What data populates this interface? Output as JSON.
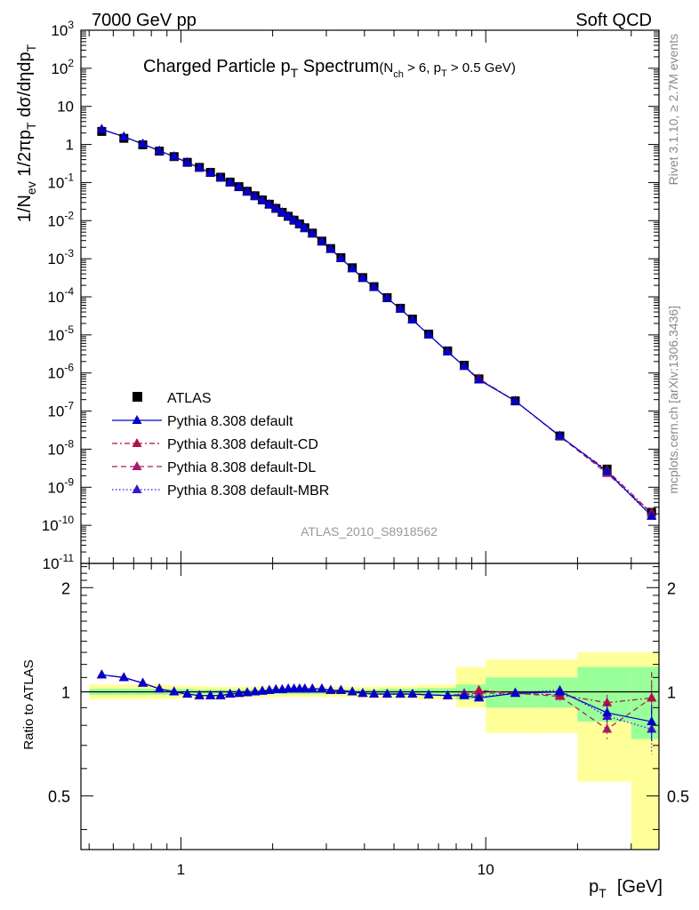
{
  "header": {
    "left": "7000 GeV pp",
    "right": "Soft QCD"
  },
  "side_labels": {
    "rivet": "Rivet 3.1.10, ≥ 2.7M events",
    "mcplots": "mcplots.cern.ch [arXiv:1306.3436]"
  },
  "analysis_id": "ATLAS_2010_S8918562",
  "chart_data": [
    {
      "type": "scatter",
      "panel": "main",
      "title": "Charged Particle pT Spectrum",
      "title_main": "Charged Particle p",
      "title_sub": "T",
      "title_main2": " Spectrum",
      "title_cond": "(N",
      "title_cond_sub1": "ch",
      "title_cond_mid": " > 6, p",
      "title_cond_sub2": "T",
      "title_cond_end": " > 0.5 GeV)",
      "xlabel": "pT [GeV]",
      "xlabel_main": "p",
      "xlabel_sub": "T",
      "xlabel_unit": "[GeV]",
      "ylabel": "1/Nev 1/2πpT dσ/dηdpT",
      "ylabel_parts": [
        "1/N",
        "ev",
        " 1/2πp",
        "T",
        " dσ/dηdp",
        "T"
      ],
      "x_scale": "log",
      "y_scale": "log",
      "xlim": [
        0.47,
        37
      ],
      "ylim": [
        1e-11,
        1000.0
      ],
      "x_tick_labels": [
        "1",
        "10"
      ],
      "y_tick_labels": [
        {
          "m": "10",
          "e": "3"
        },
        {
          "m": "10",
          "e": "2"
        },
        {
          "m": "10",
          "e": ""
        },
        {
          "m": "1",
          "e": ""
        },
        {
          "m": "10",
          "e": "-1"
        },
        {
          "m": "10",
          "e": "-2"
        },
        {
          "m": "10",
          "e": "-3"
        },
        {
          "m": "10",
          "e": "-4"
        },
        {
          "m": "10",
          "e": "-5"
        },
        {
          "m": "10",
          "e": "-6"
        },
        {
          "m": "10",
          "e": "-7"
        },
        {
          "m": "10",
          "e": "-8"
        },
        {
          "m": "10",
          "e": "-9"
        },
        {
          "m": "10",
          "e": "-10"
        },
        {
          "m": "10",
          "e": "-11"
        }
      ],
      "legend_position": "lower-left",
      "x": [
        0.55,
        0.65,
        0.75,
        0.85,
        0.95,
        1.05,
        1.15,
        1.25,
        1.35,
        1.45,
        1.55,
        1.65,
        1.75,
        1.85,
        1.95,
        2.05,
        2.15,
        2.25,
        2.35,
        2.45,
        2.55,
        2.7,
        2.9,
        3.1,
        3.35,
        3.65,
        3.95,
        4.3,
        4.75,
        5.25,
        5.75,
        6.5,
        7.5,
        8.5,
        9.5,
        12.5,
        17.5,
        25,
        35
      ],
      "series": [
        {
          "name": "ATLAS",
          "color": "#000000",
          "marker": "square",
          "values": [
            2.2,
            1.45,
            0.98,
            0.67,
            0.48,
            0.34,
            0.25,
            0.185,
            0.138,
            0.103,
            0.078,
            0.059,
            0.045,
            0.035,
            0.027,
            0.021,
            0.0165,
            0.013,
            0.0103,
            0.0082,
            0.0065,
            0.0047,
            0.0029,
            0.00185,
            0.00107,
            0.00058,
            0.00032,
            0.000185,
            9.5e-05,
            5e-05,
            2.6e-05,
            1.05e-05,
            3.8e-06,
            1.6e-06,
            7e-07,
            1.85e-07,
            2.22e-08,
            3e-09,
            2.2e-10
          ]
        },
        {
          "name": "Pythia 8.308 default",
          "color": "#0000cc",
          "marker": "triangle",
          "line": "solid",
          "values": [
            2.5,
            1.6,
            1.03,
            0.68,
            0.48,
            0.335,
            0.245,
            0.18,
            0.134,
            0.1,
            0.076,
            0.058,
            0.044,
            0.034,
            0.0266,
            0.0208,
            0.0164,
            0.0129,
            0.0102,
            0.0081,
            0.0064,
            0.0046,
            0.0028,
            0.00178,
            0.00102,
            0.00055,
            0.00031,
            0.000178,
            9.2e-05,
            4.8e-05,
            2.5e-05,
            1.01e-05,
            3.6e-06,
            1.5e-06,
            6.6e-07,
            1.84e-07,
            2.22e-08,
            2.6e-09,
            1.78e-10
          ]
        },
        {
          "name": "Pythia 8.308 default-CD",
          "color": "#b00f4a",
          "marker": "triangle",
          "line": "dashdot",
          "values": [
            2.5,
            1.6,
            1.03,
            0.68,
            0.48,
            0.335,
            0.245,
            0.18,
            0.134,
            0.1,
            0.076,
            0.058,
            0.044,
            0.034,
            0.0266,
            0.0208,
            0.0164,
            0.0129,
            0.0102,
            0.0081,
            0.0064,
            0.0046,
            0.0028,
            0.00178,
            0.00102,
            0.00055,
            0.00031,
            0.000178,
            9.2e-05,
            4.8e-05,
            2.5e-05,
            1.01e-05,
            3.6e-06,
            1.5e-06,
            7.1e-07,
            1.84e-07,
            2.18e-08,
            2.8e-09,
            2.11e-10
          ]
        },
        {
          "name": "Pythia 8.308 default-DL",
          "color": "#a51b66",
          "marker": "triangle",
          "line": "dashed",
          "values": [
            2.5,
            1.6,
            1.03,
            0.68,
            0.48,
            0.335,
            0.245,
            0.18,
            0.134,
            0.1,
            0.076,
            0.058,
            0.044,
            0.034,
            0.0266,
            0.0208,
            0.0164,
            0.0129,
            0.0102,
            0.0081,
            0.0064,
            0.0046,
            0.0028,
            0.00178,
            0.00102,
            0.00055,
            0.00031,
            0.000178,
            9.2e-05,
            4.8e-05,
            2.5e-05,
            1.01e-05,
            3.6e-06,
            1.5e-06,
            6.9e-07,
            1.84e-07,
            2.15e-08,
            2.3e-09,
            2.11e-10
          ]
        },
        {
          "name": "Pythia 8.308 default-MBR",
          "color": "#3a16c9",
          "marker": "triangle",
          "line": "dotted",
          "values": [
            2.5,
            1.6,
            1.03,
            0.68,
            0.48,
            0.335,
            0.245,
            0.18,
            0.134,
            0.1,
            0.076,
            0.058,
            0.044,
            0.034,
            0.0266,
            0.0208,
            0.0164,
            0.0129,
            0.0102,
            0.0081,
            0.0064,
            0.0046,
            0.0028,
            0.00178,
            0.00102,
            0.00055,
            0.00031,
            0.000178,
            9.2e-05,
            4.8e-05,
            2.5e-05,
            1.01e-05,
            3.6e-06,
            1.5e-06,
            6.7e-07,
            1.84e-07,
            2.25e-08,
            2.5e-09,
            1.72e-10
          ]
        }
      ]
    },
    {
      "type": "scatter",
      "panel": "ratio",
      "ylabel": "Ratio to ATLAS",
      "x_scale": "log",
      "y_scale": "log",
      "xlim": [
        0.47,
        37
      ],
      "ylim": [
        0.35,
        2.35
      ],
      "y_tick_labels": [
        "2",
        "1",
        "0.5"
      ],
      "y_ticks": [
        2,
        1,
        0.5
      ],
      "reference_line": 1,
      "bands": [
        {
          "x_edges": [
            0.5,
            0.6,
            0.7,
            0.8,
            0.9,
            1.0,
            1.1,
            1.2,
            1.3,
            1.4,
            1.5,
            1.6,
            1.7,
            1.8,
            1.9,
            2.0,
            2.1,
            2.2,
            2.3,
            2.4,
            2.5,
            2.6,
            2.8,
            3.0,
            3.2,
            3.5,
            3.8,
            4.1,
            4.5,
            5.0,
            5.5,
            6.0,
            7.0,
            8.0,
            9.0,
            10.0,
            15.0,
            20.0,
            30.0,
            40.0
          ],
          "green_low": [
            0.98,
            0.98,
            0.98,
            0.98,
            0.98,
            0.98,
            0.985,
            0.985,
            0.985,
            0.985,
            0.985,
            0.985,
            0.985,
            0.985,
            0.985,
            0.985,
            0.985,
            0.985,
            0.985,
            0.985,
            0.985,
            0.985,
            0.985,
            0.985,
            0.985,
            0.985,
            0.985,
            0.985,
            0.98,
            0.98,
            0.98,
            0.975,
            0.975,
            0.95,
            0.95,
            0.9,
            0.9,
            0.82,
            0.73
          ],
          "green_high": [
            1.02,
            1.02,
            1.02,
            1.02,
            1.02,
            1.02,
            1.015,
            1.015,
            1.015,
            1.015,
            1.015,
            1.015,
            1.015,
            1.015,
            1.015,
            1.015,
            1.015,
            1.015,
            1.015,
            1.015,
            1.015,
            1.015,
            1.015,
            1.015,
            1.015,
            1.015,
            1.015,
            1.015,
            1.02,
            1.02,
            1.02,
            1.025,
            1.025,
            1.05,
            1.05,
            1.1,
            1.1,
            1.18,
            1.18
          ],
          "yellow_low": [
            0.95,
            0.95,
            0.95,
            0.95,
            0.955,
            0.96,
            0.96,
            0.965,
            0.965,
            0.965,
            0.965,
            0.965,
            0.965,
            0.965,
            0.965,
            0.965,
            0.965,
            0.965,
            0.965,
            0.965,
            0.965,
            0.965,
            0.965,
            0.965,
            0.965,
            0.965,
            0.965,
            0.965,
            0.96,
            0.96,
            0.96,
            0.95,
            0.95,
            0.9,
            0.9,
            0.76,
            0.76,
            0.55,
            0.35
          ],
          "yellow_high": [
            1.05,
            1.05,
            1.05,
            1.05,
            1.045,
            1.04,
            1.04,
            1.035,
            1.035,
            1.035,
            1.035,
            1.035,
            1.035,
            1.035,
            1.035,
            1.035,
            1.035,
            1.035,
            1.035,
            1.035,
            1.035,
            1.035,
            1.035,
            1.035,
            1.035,
            1.035,
            1.035,
            1.035,
            1.04,
            1.04,
            1.04,
            1.05,
            1.05,
            1.18,
            1.18,
            1.24,
            1.24,
            1.3,
            1.3
          ]
        }
      ],
      "x": [
        0.55,
        0.65,
        0.75,
        0.85,
        0.95,
        1.05,
        1.15,
        1.25,
        1.35,
        1.45,
        1.55,
        1.65,
        1.75,
        1.85,
        1.95,
        2.05,
        2.15,
        2.25,
        2.35,
        2.45,
        2.55,
        2.7,
        2.9,
        3.1,
        3.35,
        3.65,
        3.95,
        4.3,
        4.75,
        5.25,
        5.75,
        6.5,
        7.5,
        8.5,
        9.5,
        12.5,
        17.5,
        25,
        35
      ],
      "series": [
        {
          "name": "Pythia 8.308 default",
          "color": "#0000cc",
          "line": "solid",
          "values": [
            1.12,
            1.1,
            1.06,
            1.02,
            1.0,
            0.985,
            0.975,
            0.975,
            0.975,
            0.985,
            0.99,
            0.995,
            1.0,
            1.005,
            1.01,
            1.015,
            1.015,
            1.02,
            1.02,
            1.02,
            1.02,
            1.02,
            1.02,
            1.01,
            1.01,
            1.0,
            0.99,
            0.985,
            0.985,
            0.985,
            0.985,
            0.98,
            0.975,
            0.975,
            0.96,
            0.99,
            1.0,
            0.87,
            0.82
          ],
          "errors": [
            0,
            0,
            0,
            0,
            0,
            0,
            0,
            0,
            0,
            0,
            0,
            0,
            0,
            0,
            0,
            0,
            0,
            0,
            0,
            0,
            0,
            0,
            0,
            0,
            0,
            0,
            0,
            0,
            0,
            0,
            0,
            0,
            0,
            0,
            0.01,
            0.01,
            0.03,
            0.05,
            0.1
          ]
        },
        {
          "name": "Pythia 8.308 default-CD",
          "color": "#b00f4a",
          "line": "dashdot",
          "values": [
            1.12,
            1.1,
            1.06,
            1.02,
            1.0,
            0.985,
            0.975,
            0.975,
            0.975,
            0.985,
            0.99,
            0.995,
            1.0,
            1.005,
            1.01,
            1.015,
            1.015,
            1.02,
            1.02,
            1.02,
            1.02,
            1.02,
            1.02,
            1.01,
            1.01,
            1.0,
            0.99,
            0.985,
            0.985,
            0.985,
            0.985,
            0.98,
            0.975,
            0.98,
            1.01,
            0.99,
            0.98,
            0.93,
            0.96
          ],
          "errors": [
            0,
            0,
            0,
            0,
            0,
            0,
            0,
            0,
            0,
            0,
            0,
            0,
            0,
            0,
            0,
            0,
            0,
            0,
            0,
            0,
            0,
            0,
            0,
            0,
            0,
            0,
            0,
            0,
            0,
            0,
            0,
            0,
            0,
            0,
            0.01,
            0.01,
            0.03,
            0.05,
            0.18
          ]
        },
        {
          "name": "Pythia 8.308 default-DL",
          "color": "#a51b66",
          "line": "dashed",
          "values": [
            1.12,
            1.1,
            1.06,
            1.02,
            1.0,
            0.985,
            0.975,
            0.975,
            0.975,
            0.985,
            0.99,
            0.995,
            1.0,
            1.005,
            1.01,
            1.015,
            1.015,
            1.02,
            1.02,
            1.02,
            1.02,
            1.02,
            1.02,
            1.01,
            1.01,
            1.0,
            0.99,
            0.985,
            0.985,
            0.985,
            0.985,
            0.98,
            0.975,
            0.985,
            0.99,
            0.99,
            0.97,
            0.78,
            0.96
          ],
          "errors": [
            0,
            0,
            0,
            0,
            0,
            0,
            0,
            0,
            0,
            0,
            0,
            0,
            0,
            0,
            0,
            0,
            0,
            0,
            0,
            0,
            0,
            0,
            0,
            0,
            0,
            0,
            0,
            0,
            0,
            0,
            0,
            0,
            0,
            0,
            0.01,
            0.01,
            0.03,
            0.05,
            0.18
          ]
        },
        {
          "name": "Pythia 8.308 default-MBR",
          "color": "#3a16c9",
          "line": "dotted",
          "values": [
            1.12,
            1.1,
            1.06,
            1.02,
            1.0,
            0.985,
            0.975,
            0.975,
            0.975,
            0.985,
            0.99,
            0.995,
            1.0,
            1.005,
            1.01,
            1.015,
            1.015,
            1.02,
            1.02,
            1.02,
            1.02,
            1.02,
            1.02,
            1.01,
            1.01,
            1.0,
            0.99,
            0.985,
            0.985,
            0.985,
            0.985,
            0.98,
            0.975,
            0.99,
            0.965,
            0.995,
            1.01,
            0.85,
            0.78
          ],
          "errors": [
            0,
            0,
            0,
            0,
            0,
            0,
            0,
            0,
            0,
            0,
            0,
            0,
            0,
            0,
            0,
            0,
            0,
            0,
            0,
            0,
            0,
            0,
            0,
            0,
            0,
            0,
            0,
            0,
            0,
            0,
            0,
            0,
            0,
            0,
            0.01,
            0.01,
            0.03,
            0.05,
            0.12
          ]
        }
      ]
    }
  ]
}
